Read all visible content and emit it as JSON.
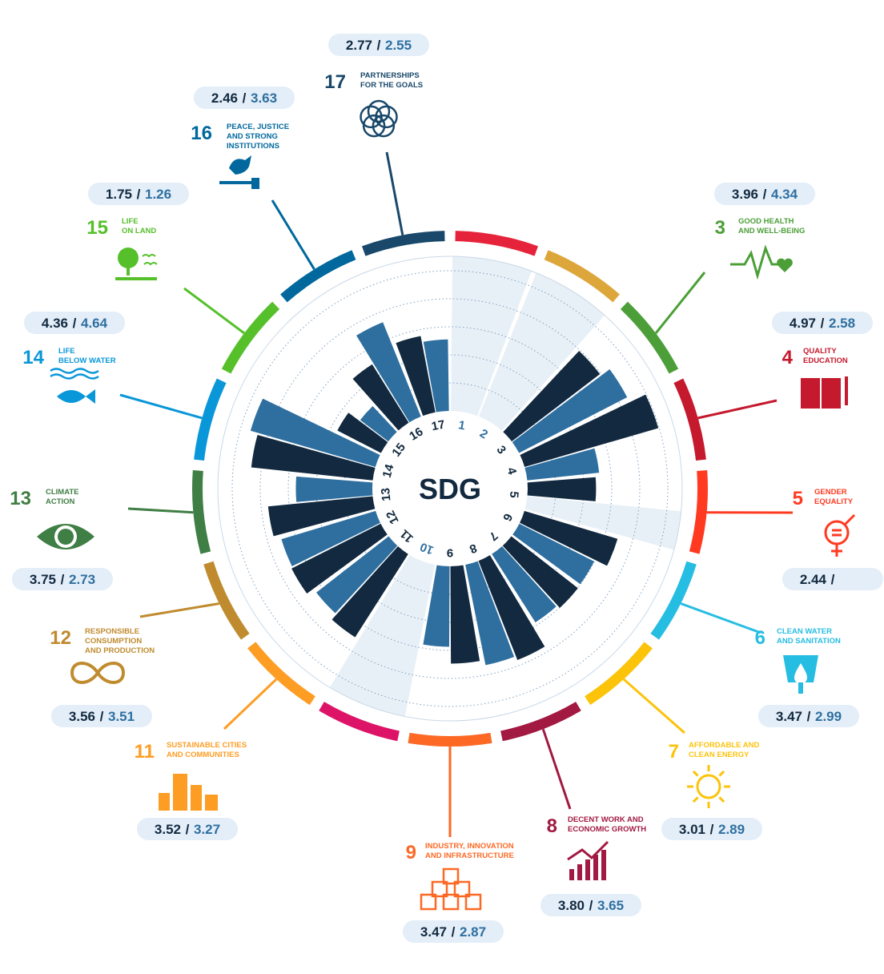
{
  "chart_data": {
    "type": "radial-bar",
    "center_label": "SDG",
    "scale_max": 5,
    "colors": {
      "series_a": "#12293f",
      "series_b": "#2f6fa0",
      "empty_wedge": "#e8f0f7"
    },
    "goals": [
      {
        "num": "1",
        "name_lines": [],
        "value_a": null,
        "value_b": null,
        "pill_text_a": "",
        "pill_text_b": "",
        "color": "#e5243b",
        "icon": ""
      },
      {
        "num": "2",
        "name_lines": [],
        "value_a": null,
        "value_b": null,
        "pill_text_a": "",
        "pill_text_b": "",
        "color": "#dda63a",
        "icon": ""
      },
      {
        "num": "3",
        "name_lines": [
          "GOOD HEALTH",
          "AND WELL-BEING"
        ],
        "value_a": 3.96,
        "value_b": 4.34,
        "pill_text_a": "3.96",
        "pill_text_b": "4.34",
        "color": "#4c9f38",
        "icon": "heartbeat-icon"
      },
      {
        "num": "4",
        "name_lines": [
          "QUALITY",
          "EDUCATION"
        ],
        "value_a": 4.97,
        "value_b": 2.58,
        "pill_text_a": "4.97",
        "pill_text_b": "2.58",
        "color": "#c5192d",
        "icon": "book-icon"
      },
      {
        "num": "5",
        "name_lines": [
          "GENDER",
          "EQUALITY"
        ],
        "value_a": 2.44,
        "value_b": null,
        "pill_text_a": "2.44",
        "pill_text_b": "",
        "color": "#ff3a21",
        "icon": "gender-icon"
      },
      {
        "num": "6",
        "name_lines": [
          "CLEAN WATER",
          "AND SANITATION"
        ],
        "value_a": 3.47,
        "value_b": 2.99,
        "pill_text_a": "3.47",
        "pill_text_b": "2.99",
        "color": "#26bde2",
        "icon": "water-drop-icon"
      },
      {
        "num": "7",
        "name_lines": [
          "AFFORDABLE AND",
          "CLEAN ENERGY"
        ],
        "value_a": 3.01,
        "value_b": 2.89,
        "pill_text_a": "3.01",
        "pill_text_b": "2.89",
        "color": "#fcc30b",
        "icon": "sun-power-icon"
      },
      {
        "num": "8",
        "name_lines": [
          "DECENT WORK AND",
          "ECONOMIC GROWTH"
        ],
        "value_a": 3.8,
        "value_b": 3.65,
        "pill_text_a": "3.80",
        "pill_text_b": "3.65",
        "color": "#a21942",
        "icon": "growth-chart-icon"
      },
      {
        "num": "9",
        "name_lines": [
          "INDUSTRY, INNOVATION",
          "AND INFRASTRUCTURE"
        ],
        "value_a": 3.47,
        "value_b": 2.87,
        "pill_text_a": "3.47",
        "pill_text_b": "2.87",
        "color": "#fd6925",
        "icon": "cubes-icon"
      },
      {
        "num": "10",
        "name_lines": [],
        "value_a": null,
        "value_b": null,
        "pill_text_a": "",
        "pill_text_b": "",
        "color": "#dd1367",
        "icon": ""
      },
      {
        "num": "11",
        "name_lines": [
          "SUSTAINABLE CITIES",
          "AND COMMUNITIES"
        ],
        "value_a": 3.52,
        "value_b": 3.27,
        "pill_text_a": "3.52",
        "pill_text_b": "3.27",
        "color": "#fd9d24",
        "icon": "city-buildings-icon"
      },
      {
        "num": "12",
        "name_lines": [
          "RESPONSIBLE",
          "CONSUMPTION",
          "AND PRODUCTION"
        ],
        "value_a": 3.56,
        "value_b": 3.51,
        "pill_text_a": "3.56",
        "pill_text_b": "3.51",
        "color": "#bf8b2e",
        "icon": "infinity-loop-icon"
      },
      {
        "num": "13",
        "name_lines": [
          "CLIMATE",
          "ACTION"
        ],
        "value_a": 3.75,
        "value_b": 2.73,
        "pill_text_a": "3.75",
        "pill_text_b": "2.73",
        "color": "#3f7e44",
        "icon": "globe-eye-icon"
      },
      {
        "num": "14",
        "name_lines": [
          "LIFE",
          "BELOW WATER"
        ],
        "value_a": 4.36,
        "value_b": 4.64,
        "pill_text_a": "4.36",
        "pill_text_b": "4.64",
        "color": "#0a97d9",
        "icon": "fish-icon"
      },
      {
        "num": "15",
        "name_lines": [
          "LIFE",
          "ON LAND"
        ],
        "value_a": 1.75,
        "value_b": 1.26,
        "pill_text_a": "1.75",
        "pill_text_b": "1.26",
        "color": "#56c02b",
        "icon": "tree-icon"
      },
      {
        "num": "16",
        "name_lines": [
          "PEACE, JUSTICE",
          "AND STRONG",
          "INSTITUTIONS"
        ],
        "value_a": 2.46,
        "value_b": 3.63,
        "pill_text_a": "2.46",
        "pill_text_b": "3.63",
        "color": "#00689d",
        "icon": "dove-gavel-icon"
      },
      {
        "num": "17",
        "name_lines": [
          "PARTNERSHIPS",
          "FOR THE GOALS"
        ],
        "value_a": 2.77,
        "value_b": 2.55,
        "pill_text_a": "2.77",
        "pill_text_b": "2.55",
        "color": "#19486a",
        "icon": "rings-icon"
      }
    ]
  }
}
